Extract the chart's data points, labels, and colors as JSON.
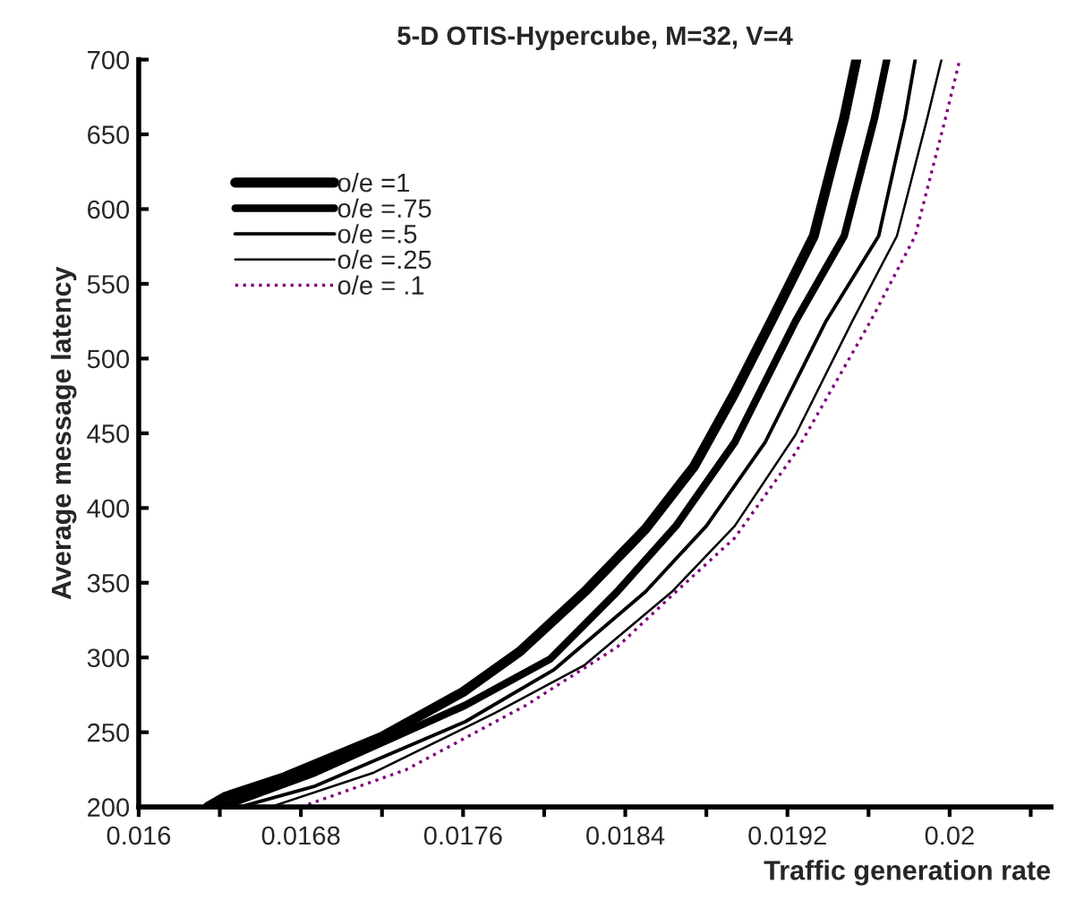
{
  "chart_data": {
    "type": "line",
    "title": "5-D OTIS-Hypercube, M=32, V=4",
    "xlabel": "Traffic generation rate",
    "ylabel": "Average message latency",
    "xlim": [
      0.016,
      0.0205
    ],
    "ylim": [
      200,
      700
    ],
    "xticks": [
      0.016,
      {
        "value": 0.0164,
        "label": null
      },
      0.0168,
      {
        "value": 0.0172,
        "label": null
      },
      0.0176,
      {
        "value": 0.018,
        "label": null
      },
      0.0184,
      {
        "value": 0.0188,
        "label": null
      },
      0.0192,
      {
        "value": 0.0196,
        "label": null
      },
      0.02,
      {
        "value": 0.0204,
        "label": null
      }
    ],
    "yticks": [
      200,
      250,
      300,
      350,
      400,
      450,
      500,
      550,
      600,
      650,
      700
    ],
    "grid": false,
    "legend": "top left",
    "marker": "none",
    "series": [
      {
        "name": "o/e =1",
        "color": "#000000",
        "line_style": "solid",
        "x": [
          0.01634,
          0.01643,
          0.01672,
          0.0172,
          0.0176,
          0.01788,
          0.0182,
          0.0185,
          0.01874,
          0.01894,
          0.01912,
          0.01933,
          0.01948,
          0.01954
        ],
        "values": [
          200,
          207,
          220,
          247,
          277,
          304,
          344,
          386,
          428,
          477,
          525,
          582,
          661,
          700
        ]
      },
      {
        "name": "o/e =.75",
        "color": "#000000",
        "line_style": "solid",
        "x": [
          0.01641,
          0.01687,
          0.01761,
          0.01803,
          0.01836,
          0.01865,
          0.01894,
          0.01924,
          0.01948,
          0.01963,
          0.01969
        ],
        "values": [
          200,
          223,
          268,
          299,
          344,
          388,
          444,
          525,
          582,
          661,
          700
        ]
      },
      {
        "name": "o/e =.5",
        "color": "#000000",
        "line_style": "solid",
        "x": [
          0.0165,
          0.01687,
          0.01761,
          0.01805,
          0.0185,
          0.0188,
          0.01909,
          0.01939,
          0.01965,
          0.01978,
          0.01983
        ],
        "values": [
          200,
          214,
          257,
          292,
          344,
          388,
          444,
          525,
          582,
          661,
          700
        ]
      },
      {
        "name": "o/e =.25",
        "color": "#000000",
        "line_style": "solid",
        "x": [
          0.01665,
          0.01716,
          0.01776,
          0.0182,
          0.01863,
          0.01894,
          0.01924,
          0.01952,
          0.01974,
          0.01989,
          0.01996
        ],
        "values": [
          200,
          223,
          263,
          295,
          344,
          388,
          449,
          525,
          582,
          661,
          700
        ]
      },
      {
        "name": "o/e = .1",
        "color": "#800080",
        "line_style": "dotted",
        "x": [
          0.0168,
          0.01732,
          0.01791,
          0.01836,
          0.01865,
          0.01894,
          0.01924,
          0.01961,
          0.01983,
          0.01998,
          0.02005
        ],
        "values": [
          200,
          225,
          268,
          307,
          344,
          380,
          437,
          525,
          582,
          661,
          700
        ]
      }
    ]
  }
}
